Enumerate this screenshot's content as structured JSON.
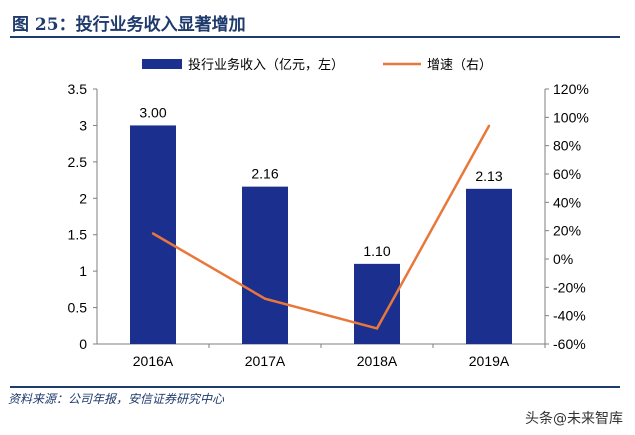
{
  "header": {
    "title": "图 25：投行业务收入显著增加"
  },
  "footer": {
    "source": "资料来源：公司年报，安信证券研究中心",
    "watermark": "头条@未来智库"
  },
  "colors": {
    "bar": "#1b2f8f",
    "line": "#e9773a",
    "title": "#1f3a6d"
  },
  "chart_data": {
    "type": "bar",
    "categories": [
      "2016A",
      "2017A",
      "2018A",
      "2019A"
    ],
    "series": [
      {
        "name": "投行业务收入（亿元，左）",
        "type": "bar",
        "axis": "left",
        "values": [
          3.0,
          2.16,
          1.1,
          2.13
        ],
        "labels": [
          "3.00",
          "2.16",
          "1.10",
          "2.13"
        ]
      },
      {
        "name": "增速（右）",
        "type": "line",
        "axis": "right",
        "values": [
          18,
          -28,
          -49,
          94
        ]
      }
    ],
    "y_left": {
      "min": 0,
      "max": 3.5,
      "ticks": [
        "0",
        "0.5",
        "1",
        "1.5",
        "2",
        "2.5",
        "3",
        "3.5"
      ]
    },
    "y_right": {
      "min": -60,
      "max": 120,
      "ticks": [
        "-60%",
        "-40%",
        "-20%",
        "0%",
        "20%",
        "40%",
        "60%",
        "80%",
        "100%",
        "120%"
      ]
    },
    "legend_position": "top",
    "grid": false
  }
}
